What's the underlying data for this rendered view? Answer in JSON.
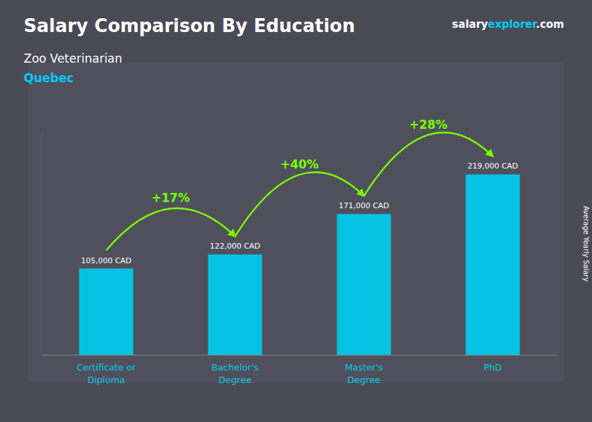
{
  "chart_data": {
    "type": "bar",
    "title": "Salary Comparison By Education",
    "subtitle": "Zoo Veterinarian",
    "location": "Quebec",
    "site": [
      "salary",
      "explorer",
      ".com"
    ],
    "ylabel": "Average Yearly Salary",
    "categories": [
      "Certificate or\nDiploma",
      "Bachelor's\nDegree",
      "Master's\nDegree",
      "PhD"
    ],
    "values": [
      105000,
      122000,
      171000,
      219000
    ],
    "value_labels": [
      "105,000 CAD",
      "122,000 CAD",
      "171,000 CAD",
      "219,000 CAD"
    ],
    "annotations": [
      "+17%",
      "+40%",
      "+28%"
    ],
    "color": "#00ccee",
    "ylim": [
      0,
      270000
    ],
    "data_labels": true,
    "tick_labels": "x",
    "grid": false
  }
}
